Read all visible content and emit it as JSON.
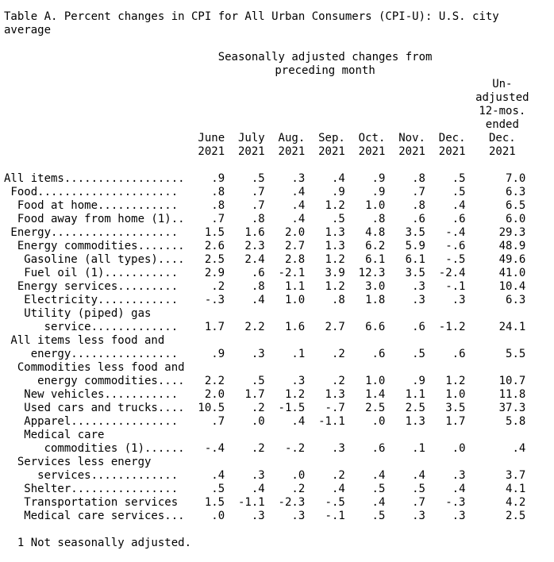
{
  "title": [
    "Table A. Percent changes in CPI for All Urban Consumers (CPI-U): U.S. city",
    "average"
  ],
  "group_header": [
    "Seasonally adjusted changes from",
    "preceding month"
  ],
  "months": [
    [
      "June",
      "2021"
    ],
    [
      "July",
      "2021"
    ],
    [
      "Aug.",
      "2021"
    ],
    [
      "Sep.",
      "2021"
    ],
    [
      "Oct.",
      "2021"
    ],
    [
      "Nov.",
      "2021"
    ],
    [
      "Dec.",
      "2021"
    ]
  ],
  "unadjusted_header": [
    "Un-",
    "adjusted",
    "12-mos.",
    "ended",
    "Dec.",
    "2021"
  ],
  "rows": [
    {
      "label": [
        "All items.................."
      ],
      "values": [
        ".9",
        ".5",
        ".3",
        ".4",
        ".9",
        ".8",
        ".5"
      ],
      "unadjusted": "7.0"
    },
    {
      "label": [
        " Food....................."
      ],
      "values": [
        ".8",
        ".7",
        ".4",
        ".9",
        ".9",
        ".7",
        ".5"
      ],
      "unadjusted": "6.3"
    },
    {
      "label": [
        "  Food at home............"
      ],
      "values": [
        ".8",
        ".7",
        ".4",
        "1.2",
        "1.0",
        ".8",
        ".4"
      ],
      "unadjusted": "6.5"
    },
    {
      "label": [
        "  Food away from home (1).."
      ],
      "values": [
        ".7",
        ".8",
        ".4",
        ".5",
        ".8",
        ".6",
        ".6"
      ],
      "unadjusted": "6.0"
    },
    {
      "label": [
        " Energy..................."
      ],
      "values": [
        "1.5",
        "1.6",
        "2.0",
        "1.3",
        "4.8",
        "3.5",
        "-.4"
      ],
      "unadjusted": "29.3"
    },
    {
      "label": [
        "  Energy commodities......."
      ],
      "values": [
        "2.6",
        "2.3",
        "2.7",
        "1.3",
        "6.2",
        "5.9",
        "-.6"
      ],
      "unadjusted": "48.9"
    },
    {
      "label": [
        "   Gasoline (all types)...."
      ],
      "values": [
        "2.5",
        "2.4",
        "2.8",
        "1.2",
        "6.1",
        "6.1",
        "-.5"
      ],
      "unadjusted": "49.6"
    },
    {
      "label": [
        "   Fuel oil (1)..........."
      ],
      "values": [
        "2.9",
        ".6",
        "-2.1",
        "3.9",
        "12.3",
        "3.5",
        "-2.4"
      ],
      "unadjusted": "41.0"
    },
    {
      "label": [
        "  Energy services........."
      ],
      "values": [
        ".2",
        ".8",
        "1.1",
        "1.2",
        "3.0",
        ".3",
        "-.1"
      ],
      "unadjusted": "10.4"
    },
    {
      "label": [
        "   Electricity............"
      ],
      "values": [
        "-.3",
        ".4",
        "1.0",
        ".8",
        "1.8",
        ".3",
        ".3"
      ],
      "unadjusted": "6.3"
    },
    {
      "label": [
        "   Utility (piped) gas",
        "      service............."
      ],
      "values": [
        "1.7",
        "2.2",
        "1.6",
        "2.7",
        "6.6",
        ".6",
        "-1.2"
      ],
      "unadjusted": "24.1"
    },
    {
      "label": [
        " All items less food and",
        "    energy................"
      ],
      "values": [
        ".9",
        ".3",
        ".1",
        ".2",
        ".6",
        ".5",
        ".6"
      ],
      "unadjusted": "5.5"
    },
    {
      "label": [
        "  Commodities less food and",
        "     energy commodities...."
      ],
      "values": [
        "2.2",
        ".5",
        ".3",
        ".2",
        "1.0",
        ".9",
        "1.2"
      ],
      "unadjusted": "10.7"
    },
    {
      "label": [
        "   New vehicles..........."
      ],
      "values": [
        "2.0",
        "1.7",
        "1.2",
        "1.3",
        "1.4",
        "1.1",
        "1.0"
      ],
      "unadjusted": "11.8"
    },
    {
      "label": [
        "   Used cars and trucks...."
      ],
      "values": [
        "10.5",
        ".2",
        "-1.5",
        "-.7",
        "2.5",
        "2.5",
        "3.5"
      ],
      "unadjusted": "37.3"
    },
    {
      "label": [
        "   Apparel................"
      ],
      "values": [
        ".7",
        ".0",
        ".4",
        "-1.1",
        ".0",
        "1.3",
        "1.7"
      ],
      "unadjusted": "5.8"
    },
    {
      "label": [
        "   Medical care",
        "      commodities (1)......"
      ],
      "values": [
        "-.4",
        ".2",
        "-.2",
        ".3",
        ".6",
        ".1",
        ".0"
      ],
      "unadjusted": ".4"
    },
    {
      "label": [
        "  Services less energy",
        "     services............."
      ],
      "values": [
        ".4",
        ".3",
        ".0",
        ".2",
        ".4",
        ".4",
        ".3"
      ],
      "unadjusted": "3.7"
    },
    {
      "label": [
        "   Shelter................"
      ],
      "values": [
        ".5",
        ".4",
        ".2",
        ".4",
        ".5",
        ".5",
        ".4"
      ],
      "unadjusted": "4.1"
    },
    {
      "label": [
        "   Transportation services"
      ],
      "values": [
        "1.5",
        "-1.1",
        "-2.3",
        "-.5",
        ".4",
        ".7",
        "-.3"
      ],
      "unadjusted": "4.2"
    },
    {
      "label": [
        "   Medical care services..."
      ],
      "values": [
        ".0",
        ".3",
        ".3",
        "-.1",
        ".5",
        ".3",
        ".3"
      ],
      "unadjusted": "2.5"
    }
  ],
  "footnote": "  1 Not seasonally adjusted."
}
